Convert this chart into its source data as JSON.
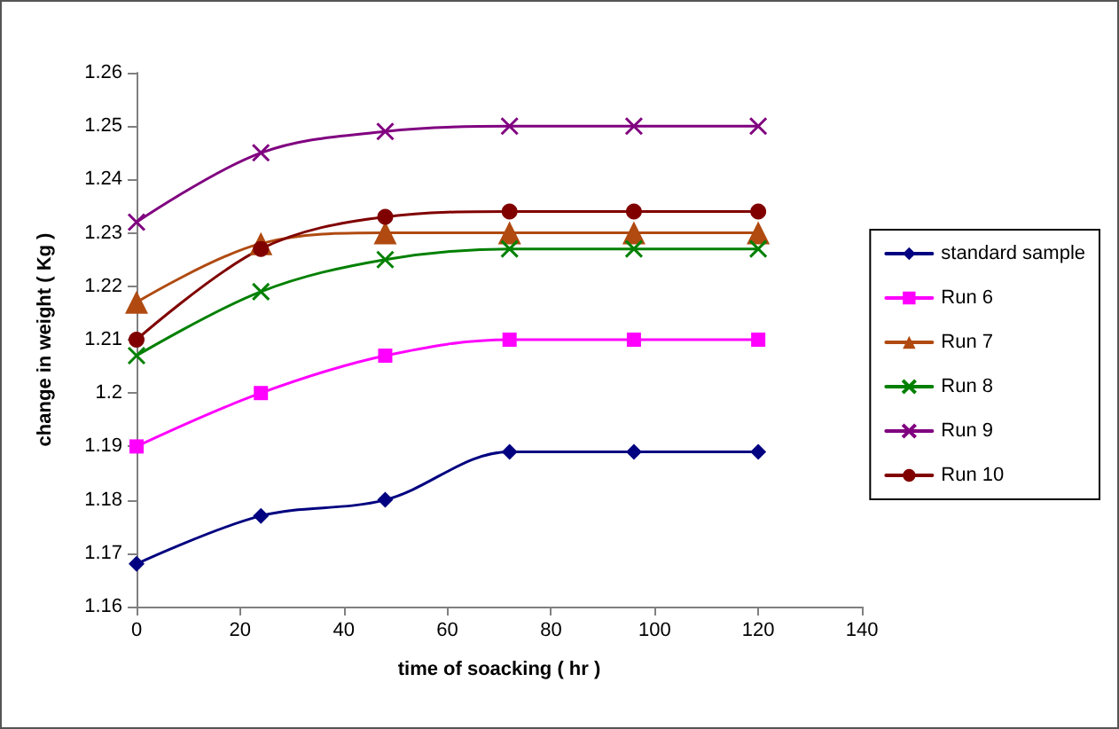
{
  "chart_data": {
    "type": "line",
    "xlabel": "time of soacking ( hr )",
    "ylabel": "change in weight ( Kg )",
    "x": [
      0,
      24,
      48,
      72,
      96,
      120
    ],
    "series": [
      {
        "name": "standard sample",
        "color": "#000080",
        "marker": "diamond",
        "values": [
          1.168,
          1.177,
          1.18,
          1.189,
          1.189,
          1.189
        ]
      },
      {
        "name": "Run 6",
        "color": "#ff00ff",
        "marker": "square",
        "values": [
          1.19,
          1.2,
          1.207,
          1.21,
          1.21,
          1.21
        ]
      },
      {
        "name": "Run 7",
        "color": "#b04a10",
        "marker": "triangle",
        "values": [
          1.217,
          1.228,
          1.23,
          1.23,
          1.23,
          1.23
        ]
      },
      {
        "name": "Run 8",
        "color": "#008000",
        "marker": "cross",
        "values": [
          1.207,
          1.219,
          1.225,
          1.227,
          1.227,
          1.227
        ]
      },
      {
        "name": "Run 9",
        "color": "#800080",
        "marker": "cross",
        "values": [
          1.232,
          1.245,
          1.249,
          1.25,
          1.25,
          1.25
        ]
      },
      {
        "name": "Run 10",
        "color": "#800000",
        "marker": "circle",
        "values": [
          1.21,
          1.227,
          1.233,
          1.234,
          1.234,
          1.234
        ]
      }
    ],
    "xlim": [
      0,
      140
    ],
    "xticks": [
      0,
      20,
      40,
      60,
      80,
      100,
      120,
      140
    ],
    "ylim": [
      1.16,
      1.26
    ],
    "yticks": [
      1.16,
      1.17,
      1.18,
      1.19,
      1.2,
      1.21,
      1.22,
      1.23,
      1.24,
      1.25,
      1.26
    ],
    "grid": false,
    "legend": "right",
    "line_style": "solid"
  }
}
